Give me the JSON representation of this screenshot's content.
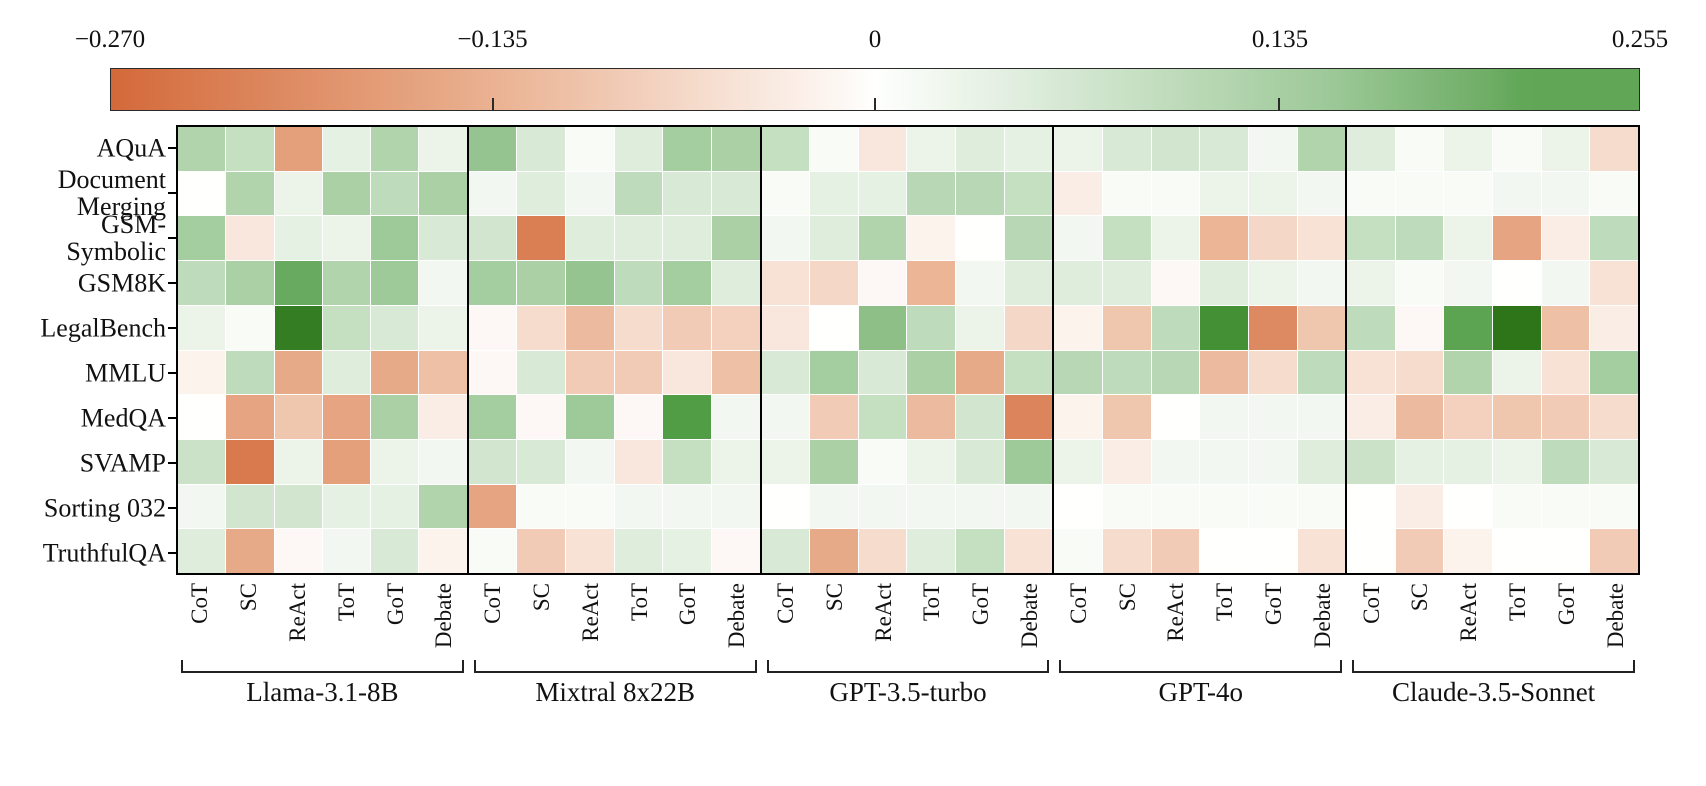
{
  "figure": {
    "background": "#ffffff"
  },
  "chart_data": {
    "type": "heatmap",
    "title": "",
    "xlabel": "",
    "ylabel": "",
    "rows": [
      "AQuA",
      "Document Merging",
      "GSM-Symbolic",
      "GSM8K",
      "LegalBench",
      "MMLU",
      "MedQA",
      "SVAMP",
      "Sorting 032",
      "TruthfulQA"
    ],
    "row_display": [
      "AQuA",
      "Document\nMerging",
      "GSM-\nSymbolic",
      "GSM8K",
      "LegalBench",
      "MMLU",
      "MedQA",
      "SVAMP",
      "Sorting 032",
      "TruthfulQA"
    ],
    "columns": [
      "CoT",
      "SC",
      "ReAct",
      "ToT",
      "GoT",
      "Debate"
    ],
    "groups": [
      {
        "name": "Llama-3.1-8B",
        "values": [
          [
            0.12,
            0.09,
            -0.17,
            0.04,
            0.12,
            0.03
          ],
          [
            0.0,
            0.12,
            0.03,
            0.13,
            0.1,
            0.13
          ],
          [
            0.14,
            -0.04,
            0.04,
            0.03,
            0.15,
            0.06
          ],
          [
            0.1,
            0.13,
            0.21,
            0.12,
            0.15,
            0.02
          ],
          [
            0.03,
            0.01,
            0.25,
            0.09,
            0.06,
            0.03
          ],
          [
            -0.02,
            0.1,
            -0.15,
            0.05,
            -0.15,
            -0.11
          ],
          [
            0.0,
            -0.16,
            -0.1,
            -0.16,
            0.13,
            -0.03
          ],
          [
            0.08,
            -0.24,
            0.03,
            -0.17,
            0.03,
            0.02
          ],
          [
            0.02,
            0.07,
            0.07,
            0.04,
            0.04,
            0.12
          ],
          [
            0.05,
            -0.15,
            -0.01,
            0.02,
            0.06,
            -0.02
          ]
        ]
      },
      {
        "name": "Mixtral 8x22B",
        "values": [
          [
            0.16,
            0.06,
            0.01,
            0.05,
            0.14,
            0.13
          ],
          [
            0.02,
            0.05,
            0.02,
            0.1,
            0.06,
            0.06
          ],
          [
            0.07,
            -0.23,
            0.05,
            0.05,
            0.05,
            0.13
          ],
          [
            0.14,
            0.13,
            0.16,
            0.1,
            0.14,
            0.05
          ],
          [
            -0.01,
            -0.06,
            -0.12,
            -0.06,
            -0.09,
            -0.08
          ],
          [
            -0.01,
            0.06,
            -0.09,
            -0.09,
            -0.04,
            -0.11
          ],
          [
            0.14,
            -0.01,
            0.15,
            -0.01,
            0.23,
            0.02
          ],
          [
            0.07,
            0.06,
            0.02,
            -0.04,
            0.09,
            0.03
          ],
          [
            -0.16,
            0.01,
            0.01,
            0.02,
            0.02,
            0.02
          ],
          [
            0.01,
            -0.09,
            -0.05,
            0.05,
            0.04,
            -0.01
          ]
        ]
      },
      {
        "name": "GPT-3.5-turbo",
        "values": [
          [
            0.09,
            0.01,
            -0.04,
            0.03,
            0.05,
            0.04
          ],
          [
            0.01,
            0.04,
            0.04,
            0.11,
            0.11,
            0.09
          ],
          [
            0.02,
            0.05,
            0.12,
            -0.02,
            0.0,
            0.11
          ],
          [
            -0.05,
            -0.07,
            -0.01,
            -0.13,
            0.02,
            0.05
          ],
          [
            -0.04,
            0.0,
            0.17,
            0.1,
            0.03,
            -0.07
          ],
          [
            0.06,
            0.14,
            0.06,
            0.13,
            -0.15,
            0.09
          ],
          [
            0.02,
            -0.09,
            0.09,
            -0.12,
            0.07,
            -0.22
          ],
          [
            0.03,
            0.13,
            0.01,
            0.03,
            0.06,
            0.15
          ],
          [
            0.0,
            0.02,
            0.02,
            0.02,
            0.02,
            0.02
          ],
          [
            0.06,
            -0.15,
            -0.06,
            0.05,
            0.09,
            -0.05
          ]
        ]
      },
      {
        "name": "GPT-4o",
        "values": [
          [
            0.03,
            0.06,
            0.07,
            0.06,
            0.02,
            0.12
          ],
          [
            -0.03,
            0.01,
            0.01,
            0.03,
            0.03,
            0.02
          ],
          [
            0.02,
            0.09,
            0.03,
            -0.13,
            -0.07,
            -0.05
          ],
          [
            0.05,
            0.05,
            -0.01,
            0.05,
            0.03,
            0.02
          ],
          [
            -0.02,
            -0.1,
            0.1,
            0.24,
            -0.21,
            -0.1
          ],
          [
            0.11,
            0.1,
            0.11,
            -0.12,
            -0.06,
            0.1
          ],
          [
            -0.02,
            -0.1,
            0.0,
            0.02,
            0.02,
            0.02
          ],
          [
            0.03,
            -0.03,
            0.02,
            0.02,
            0.02,
            0.05
          ],
          [
            0.0,
            0.01,
            0.01,
            0.01,
            0.01,
            0.01
          ],
          [
            0.01,
            -0.06,
            -0.09,
            0.0,
            0.0,
            -0.05
          ]
        ]
      },
      {
        "name": "Claude-3.5-Sonnet",
        "values": [
          [
            0.05,
            0.01,
            0.03,
            0.01,
            0.03,
            -0.06
          ],
          [
            0.01,
            0.01,
            0.01,
            0.02,
            0.02,
            0.01
          ],
          [
            0.09,
            0.1,
            0.03,
            -0.16,
            -0.03,
            0.1
          ],
          [
            0.03,
            0.01,
            0.02,
            0.0,
            0.02,
            -0.05
          ],
          [
            0.1,
            -0.01,
            0.22,
            0.255,
            -0.11,
            -0.03
          ],
          [
            -0.05,
            -0.06,
            0.12,
            0.03,
            -0.05,
            0.14
          ],
          [
            -0.03,
            -0.12,
            -0.08,
            -0.1,
            -0.09,
            -0.06
          ],
          [
            0.08,
            0.04,
            0.04,
            0.03,
            0.1,
            0.06
          ],
          [
            0.0,
            -0.03,
            0.0,
            0.01,
            0.01,
            0.01
          ],
          [
            0.0,
            -0.09,
            -0.02,
            0.0,
            0.0,
            -0.09
          ]
        ]
      }
    ],
    "colorbar": {
      "orientation": "horizontal",
      "position": "top",
      "vmin": -0.27,
      "vcenter": 0,
      "vmax": 0.255,
      "tick_values": [
        -0.27,
        -0.135,
        0,
        0.135,
        0.255
      ],
      "tick_labels": [
        "−0.270",
        "−0.135",
        "0",
        "0.135",
        "0.255"
      ]
    },
    "colors": {
      "negative_end": "#d3693a",
      "negative_mid": "#eab292",
      "center": "#fffefd",
      "positive_mid": "#9cc897",
      "positive_strong": "#57a24f",
      "positive_end": "#2e7418",
      "panel_border": "#000000",
      "grid_gap": "#ffffff"
    },
    "legend": {
      "shown": false
    },
    "grid": "white cell separators, black panel frames"
  }
}
